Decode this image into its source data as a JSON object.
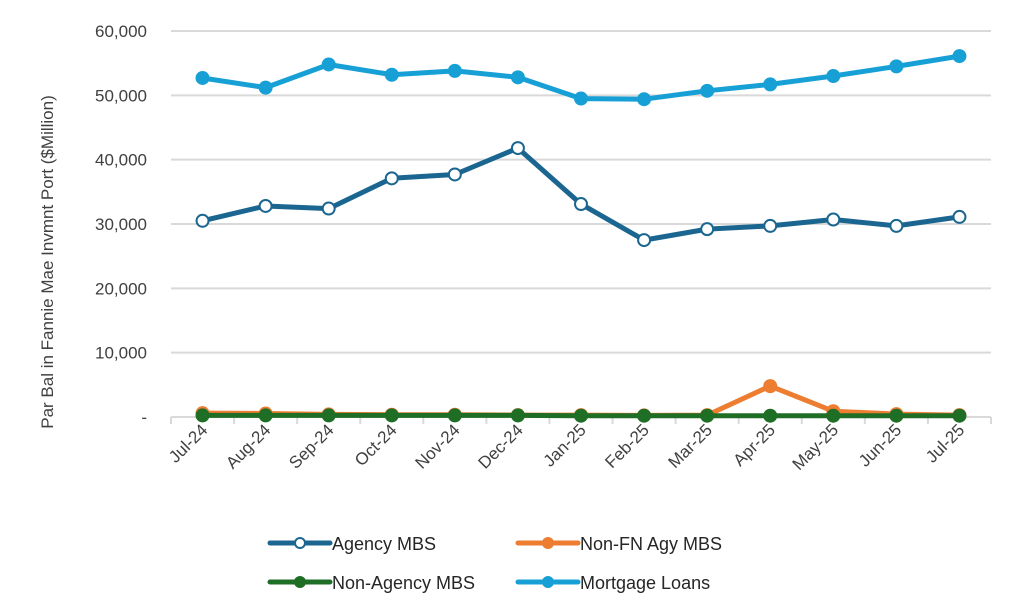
{
  "chart_data": {
    "type": "line",
    "title": "",
    "xlabel": "",
    "ylabel": "Par Bal in Fannie Mae  Invmnt Port ($Million)",
    "ylim": [
      0,
      60000
    ],
    "yticks": [
      0,
      10000,
      20000,
      30000,
      40000,
      50000,
      60000
    ],
    "ytick_labels": [
      "-",
      "10,000",
      "20,000",
      "30,000",
      "40,000",
      "50,000",
      "60,000"
    ],
    "grid": true,
    "legend_position": "bottom",
    "categories": [
      "Jul-24",
      "Aug-24",
      "Sep-24",
      "Oct-24",
      "Nov-24",
      "Dec-24",
      "Jan-25",
      "Feb-25",
      "Mar-25",
      "Apr-25",
      "May-25",
      "Jun-25",
      "Jul-25"
    ],
    "series": [
      {
        "name": "Agency MBS",
        "color": "#1B6690",
        "marker": "hollow-circle",
        "values": [
          30500,
          32800,
          32400,
          37100,
          37700,
          41800,
          33100,
          27500,
          29200,
          29700,
          30700,
          29700,
          31100
        ]
      },
      {
        "name": "Non-FN Agy MBS",
        "color": "#ED7D31",
        "marker": "filled-circle",
        "values": [
          600,
          550,
          400,
          350,
          350,
          300,
          300,
          250,
          300,
          4800,
          900,
          450,
          300
        ]
      },
      {
        "name": "Non-Agency MBS",
        "color": "#1E6E25",
        "marker": "filled-circle",
        "values": [
          250,
          250,
          250,
          250,
          250,
          250,
          200,
          200,
          200,
          200,
          200,
          200,
          200
        ]
      },
      {
        "name": "Mortgage Loans",
        "color": "#17A0D6",
        "marker": "filled-circle",
        "values": [
          52700,
          51200,
          54800,
          53200,
          53800,
          52800,
          49500,
          49400,
          50700,
          51700,
          53000,
          54500,
          56100
        ]
      }
    ],
    "legend_order": [
      0,
      1,
      2,
      3
    ]
  }
}
